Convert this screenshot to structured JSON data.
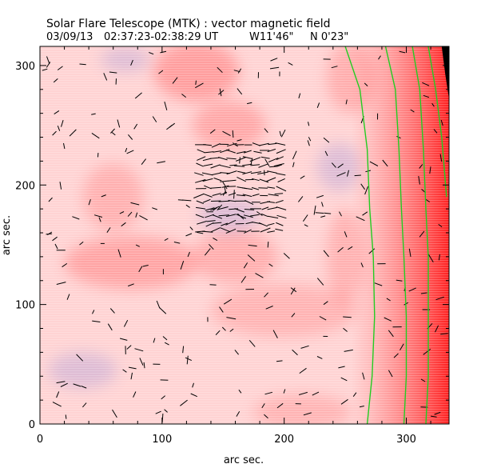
{
  "chart_data": {
    "type": "vector_map",
    "title": "Solar Flare Telescope (MTK) : vector magnetic field",
    "subtitle_parts": {
      "date": "03/09/13",
      "time_range": "02:37:23-02:38:29 UT",
      "position_ew": "W11'46\"",
      "position_ns": "N 0'23\""
    },
    "xlabel": "arc sec.",
    "ylabel": "arc sec.",
    "xlim": [
      0,
      335
    ],
    "ylim": [
      0,
      316
    ],
    "x_ticks": [
      {
        "value": 0,
        "label": "0"
      },
      {
        "value": 100,
        "label": "100"
      },
      {
        "value": 200,
        "label": "200"
      },
      {
        "value": 300,
        "label": "300"
      }
    ],
    "y_ticks": [
      {
        "value": 0,
        "label": "0"
      },
      {
        "value": 100,
        "label": "100"
      },
      {
        "value": 200,
        "label": "200"
      },
      {
        "value": 300,
        "label": "300"
      }
    ],
    "background_colors": {
      "positive": "#ff4040",
      "negative": "#6a6ad8",
      "neutral": "#ffffff"
    },
    "contour_color": "#22cc22",
    "vector_color": "#000000",
    "limb_color": "#000000",
    "contours": [
      {
        "points": [
          [
            250,
            316
          ],
          [
            262,
            280
          ],
          [
            268,
            230
          ],
          [
            270,
            180
          ],
          [
            273,
            140
          ],
          [
            274,
            90
          ],
          [
            272,
            40
          ],
          [
            268,
            0
          ]
        ]
      },
      {
        "points": [
          [
            283,
            316
          ],
          [
            291,
            280
          ],
          [
            294,
            230
          ],
          [
            296,
            180
          ],
          [
            298,
            140
          ],
          [
            300,
            90
          ],
          [
            300,
            40
          ],
          [
            298,
            0
          ]
        ]
      },
      {
        "points": [
          [
            305,
            316
          ],
          [
            311,
            280
          ],
          [
            314,
            230
          ],
          [
            316,
            180
          ],
          [
            318,
            140
          ],
          [
            318,
            90
          ],
          [
            318,
            40
          ],
          [
            316,
            0
          ]
        ]
      },
      {
        "points": [
          [
            318,
            316
          ],
          [
            324,
            280
          ],
          [
            329,
            240
          ],
          [
            333,
            190
          ]
        ]
      }
    ],
    "bright_patches": [
      {
        "x": 128,
        "y": 295,
        "rx": 35,
        "ry": 25,
        "strength": 0.85
      },
      {
        "x": 155,
        "y": 250,
        "rx": 30,
        "ry": 20,
        "strength": 0.7
      },
      {
        "x": 255,
        "y": 290,
        "rx": 20,
        "ry": 30,
        "strength": 0.6
      },
      {
        "x": 60,
        "y": 190,
        "rx": 25,
        "ry": 28,
        "strength": 0.55
      },
      {
        "x": 75,
        "y": 135,
        "rx": 55,
        "ry": 22,
        "strength": 0.75
      },
      {
        "x": 160,
        "y": 140,
        "rx": 35,
        "ry": 22,
        "strength": 0.6
      },
      {
        "x": 200,
        "y": 95,
        "rx": 60,
        "ry": 22,
        "strength": 0.5
      },
      {
        "x": 215,
        "y": 10,
        "rx": 40,
        "ry": 15,
        "strength": 0.5
      },
      {
        "x": 250,
        "y": 140,
        "rx": 15,
        "ry": 40,
        "strength": 0.55
      }
    ],
    "blue_patches": [
      {
        "x": 70,
        "y": 305,
        "rx": 20,
        "ry": 10
      },
      {
        "x": 245,
        "y": 215,
        "rx": 18,
        "ry": 20
      },
      {
        "x": 35,
        "y": 45,
        "rx": 28,
        "ry": 15
      },
      {
        "x": 155,
        "y": 175,
        "rx": 25,
        "ry": 15
      }
    ]
  }
}
